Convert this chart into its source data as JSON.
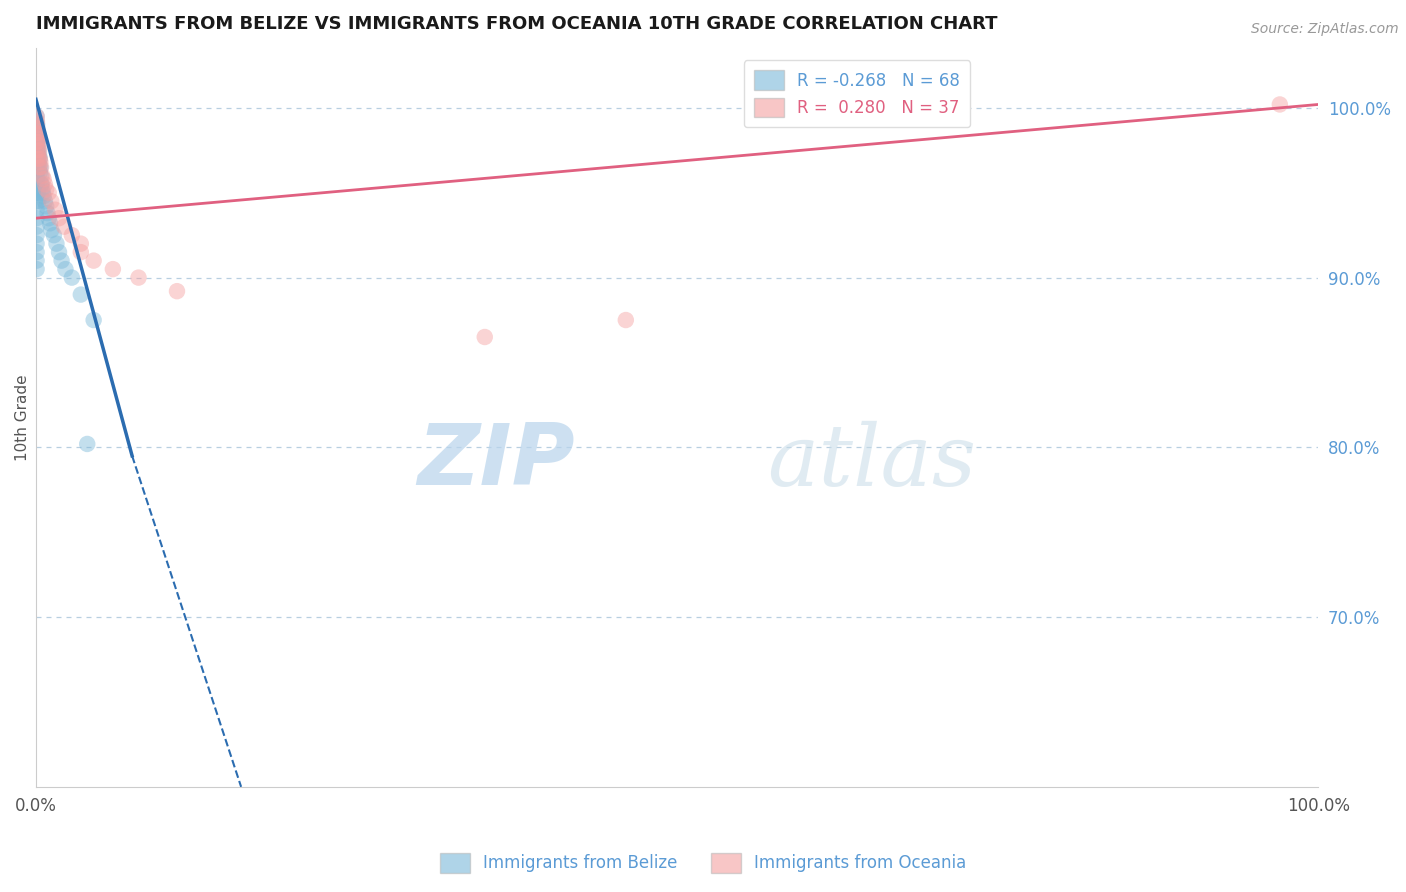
{
  "title": "IMMIGRANTS FROM BELIZE VS IMMIGRANTS FROM OCEANIA 10TH GRADE CORRELATION CHART",
  "source": "Source: ZipAtlas.com",
  "ylabel": "10th Grade",
  "right_yticks": [
    70.0,
    80.0,
    90.0,
    100.0
  ],
  "right_ytick_labels": [
    "70.0%",
    "80.0%",
    "90.0%",
    "100.0%"
  ],
  "legend_blue_r": "R = -0.268",
  "legend_blue_n": "N = 68",
  "legend_pink_r": "R =  0.280",
  "legend_pink_n": "N = 37",
  "blue_color": "#7ab8d9",
  "pink_color": "#f4a0a0",
  "blue_line_color": "#2b6cb0",
  "pink_line_color": "#e06080",
  "grid_color": "#b8cfe0",
  "watermark_zip": "ZIP",
  "watermark_atlas": "atlas",
  "blue_x": [
    0.05,
    0.05,
    0.05,
    0.05,
    0.05,
    0.05,
    0.05,
    0.05,
    0.05,
    0.05,
    0.05,
    0.05,
    0.05,
    0.1,
    0.1,
    0.1,
    0.1,
    0.1,
    0.1,
    0.15,
    0.15,
    0.15,
    0.2,
    0.2,
    0.2,
    0.25,
    0.25,
    0.3,
    0.3,
    0.35,
    0.4,
    0.4,
    0.45,
    0.5,
    0.55,
    0.6,
    0.7,
    0.8,
    0.9,
    1.0,
    1.1,
    1.2,
    1.4,
    1.6,
    1.8,
    2.0,
    2.3,
    2.8,
    3.5,
    4.5,
    0.05,
    0.05,
    0.05,
    0.05,
    0.05,
    0.05,
    0.05,
    0.05,
    0.05,
    0.05,
    0.08,
    0.08,
    0.08,
    0.1,
    0.12,
    0.15,
    0.18,
    4.0
  ],
  "blue_y": [
    99.5,
    99.2,
    98.8,
    98.5,
    98.2,
    97.8,
    97.5,
    97.2,
    96.8,
    96.5,
    96.2,
    95.8,
    95.5,
    99.0,
    98.5,
    98.0,
    97.5,
    97.0,
    96.5,
    98.5,
    97.8,
    97.2,
    98.2,
    97.5,
    96.8,
    97.2,
    96.5,
    97.0,
    96.2,
    96.5,
    96.0,
    95.5,
    95.5,
    95.2,
    95.0,
    94.8,
    94.5,
    94.2,
    93.8,
    93.5,
    93.2,
    92.8,
    92.5,
    92.0,
    91.5,
    91.0,
    90.5,
    90.0,
    89.0,
    87.5,
    95.0,
    94.5,
    94.0,
    93.5,
    93.0,
    92.5,
    92.0,
    91.5,
    91.0,
    90.5,
    96.5,
    96.0,
    95.5,
    95.8,
    95.2,
    95.0,
    94.5,
    80.2
  ],
  "pink_x": [
    0.05,
    0.05,
    0.05,
    0.1,
    0.1,
    0.15,
    0.15,
    0.2,
    0.2,
    0.25,
    0.3,
    0.35,
    0.4,
    0.5,
    0.6,
    0.7,
    0.8,
    1.0,
    1.2,
    1.5,
    1.8,
    2.2,
    2.8,
    3.5,
    3.5,
    4.5,
    6.0,
    8.0,
    11.0,
    35.0,
    46.0,
    97.0,
    0.08,
    0.08,
    0.12,
    0.18,
    0.25
  ],
  "pink_y": [
    99.5,
    99.0,
    98.5,
    98.8,
    98.0,
    98.5,
    97.5,
    97.8,
    97.2,
    97.5,
    97.0,
    96.8,
    96.5,
    96.0,
    95.8,
    95.5,
    95.2,
    95.0,
    94.5,
    94.0,
    93.5,
    93.0,
    92.5,
    92.0,
    91.5,
    91.0,
    90.5,
    90.0,
    89.2,
    86.5,
    87.5,
    100.2,
    99.2,
    98.2,
    98.0,
    97.0,
    96.5
  ],
  "blue_line": [
    [
      0.0,
      100.5
    ],
    [
      7.5,
      79.5
    ]
  ],
  "blue_line_dash": [
    [
      7.5,
      79.5
    ],
    [
      16.0,
      60.0
    ]
  ],
  "pink_line": [
    [
      0.0,
      93.5
    ],
    [
      100.0,
      100.2
    ]
  ],
  "xlim": [
    0,
    100
  ],
  "ylim": [
    60,
    103.5
  ]
}
